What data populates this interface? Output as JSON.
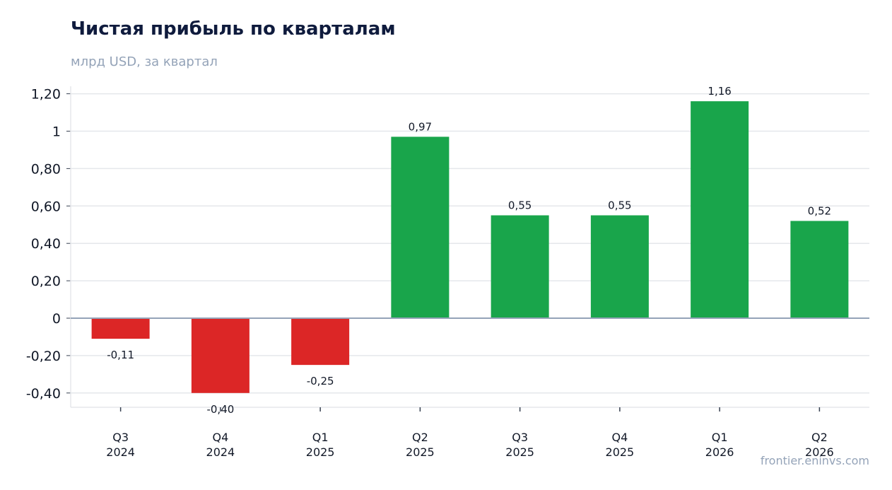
{
  "chart_data": {
    "type": "bar",
    "title": "Чистая прибыль по кварталам",
    "subtitle": "млрд USD, за квартал",
    "categories": [
      [
        "Q3",
        "2024"
      ],
      [
        "Q4",
        "2024"
      ],
      [
        "Q1",
        "2025"
      ],
      [
        "Q2",
        "2025"
      ],
      [
        "Q3",
        "2025"
      ],
      [
        "Q4",
        "2025"
      ],
      [
        "Q1",
        "2026"
      ],
      [
        "Q2",
        "2026"
      ]
    ],
    "values": [
      -0.11,
      -0.4,
      -0.25,
      0.97,
      0.55,
      0.55,
      1.16,
      0.52
    ],
    "value_labels": [
      "-0,11",
      "-0,40",
      "-0,25",
      "0,97",
      "0,55",
      "0,55",
      "1,16",
      "0,52"
    ],
    "yticks": [
      1.2,
      1.0,
      0.8,
      0.6,
      0.4,
      0.2,
      0,
      -0.2,
      -0.4
    ],
    "ytick_labels": [
      "1,20",
      "1",
      "0,80",
      "0,60",
      "0,40",
      "0,20",
      "0",
      "-0,20",
      "-0,40"
    ],
    "ylim": [
      -0.48,
      1.24
    ],
    "grid": true,
    "colors": {
      "positive": "#19a54b",
      "negative": "#dc2626",
      "grid": "#e5e7eb",
      "zero": "#94a3b8"
    }
  },
  "source": "frontier.eninvs.com"
}
